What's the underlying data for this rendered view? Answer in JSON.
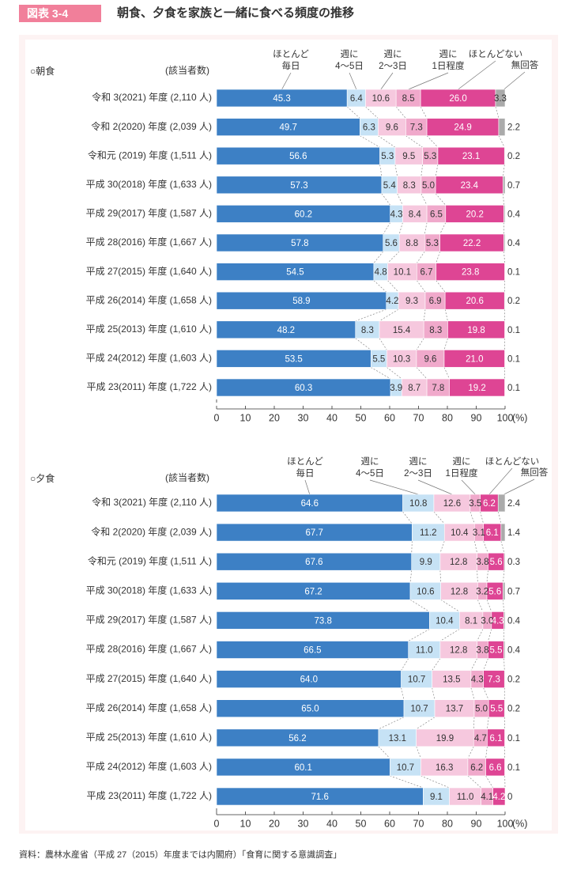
{
  "header": {
    "figure_label": "図表 3-4",
    "title": "朝食、夕食を家族と一緒に食べる頻度の推移"
  },
  "source": "資料：農林水産省（平成 27（2015）年度までは内閣府）「食育に関する意識調査」",
  "colors": {
    "daily": "#3d80c5",
    "w45": "#c6e2f5",
    "w23": "#f6c8de",
    "w1": "#f0a9cb",
    "rare": "#de4594",
    "na": "#aaaaaa"
  },
  "chart_data": [
    {
      "type": "bar",
      "stacked": "horizontal-100",
      "title": "○朝食",
      "respondents_header": "(該当者数)",
      "xlabel": "(%)",
      "xlim": [
        0,
        100
      ],
      "xticks": [
        "0",
        "10",
        "20",
        "30",
        "40",
        "50",
        "60",
        "70",
        "80",
        "90",
        "100"
      ],
      "legend": [
        "ほとんど\n毎日",
        "週に\n4〜5日",
        "週に\n2〜3日",
        "週に\n1日程度",
        "ほとんどない",
        "無回答"
      ],
      "categories": [
        "令和 3(2021) 年度 (2,110 人)",
        "令和 2(2020) 年度 (2,039 人)",
        "令和元 (2019) 年度 (1,511 人)",
        "平成 30(2018) 年度 (1,633 人)",
        "平成 29(2017) 年度 (1,587 人)",
        "平成 28(2016) 年度 (1,667 人)",
        "平成 27(2015) 年度 (1,640 人)",
        "平成 26(2014) 年度 (1,658 人)",
        "平成 25(2013) 年度 (1,610 人)",
        "平成 24(2012) 年度 (1,603 人)",
        "平成 23(2011) 年度 (1,722 人)"
      ],
      "series": [
        {
          "name": "ほとんど毎日",
          "values": [
            45.3,
            49.7,
            56.6,
            57.3,
            60.2,
            57.8,
            54.5,
            58.9,
            48.2,
            53.5,
            60.3
          ]
        },
        {
          "name": "週に4〜5日",
          "values": [
            6.4,
            6.3,
            5.3,
            5.4,
            4.3,
            5.6,
            4.8,
            4.2,
            8.3,
            5.5,
            3.9
          ]
        },
        {
          "name": "週に2〜3日",
          "values": [
            10.6,
            9.6,
            9.5,
            8.3,
            8.4,
            8.8,
            10.1,
            9.3,
            15.4,
            10.3,
            8.7
          ]
        },
        {
          "name": "週に1日程度",
          "values": [
            8.5,
            7.3,
            5.3,
            5.0,
            6.5,
            5.3,
            6.7,
            6.9,
            8.3,
            9.6,
            7.8
          ]
        },
        {
          "name": "ほとんどない",
          "values": [
            26.0,
            24.9,
            23.1,
            23.4,
            20.2,
            22.2,
            23.8,
            20.6,
            19.8,
            21.0,
            19.2
          ]
        },
        {
          "name": "無回答",
          "values": [
            3.3,
            2.2,
            0.2,
            0.7,
            0.4,
            0.4,
            0.1,
            0.2,
            0.1,
            0.1,
            0.1
          ]
        }
      ],
      "labels": [
        [
          "45.3",
          "6.4",
          "10.6",
          "8.5",
          "26.0",
          "3.3"
        ],
        [
          "49.7",
          "6.3",
          "9.6",
          "7.3",
          "24.9",
          "2.2"
        ],
        [
          "56.6",
          "5.3",
          "9.5",
          "5.3",
          "23.1",
          "0.2"
        ],
        [
          "57.3",
          "5.4",
          "8.3",
          "5.0",
          "23.4",
          "0.7"
        ],
        [
          "60.2",
          "4.3",
          "8.4",
          "6.5",
          "20.2",
          "0.4"
        ],
        [
          "57.8",
          "5.6",
          "8.8",
          "5.3",
          "22.2",
          "0.4"
        ],
        [
          "54.5",
          "4.8",
          "10.1",
          "6.7",
          "23.8",
          "0.1"
        ],
        [
          "58.9",
          "4.2",
          "9.3",
          "6.9",
          "20.6",
          "0.2"
        ],
        [
          "48.2",
          "8.3",
          "15.4",
          "8.3",
          "19.8",
          "0.1"
        ],
        [
          "53.5",
          "5.5",
          "10.3",
          "9.6",
          "21.0",
          "0.1"
        ],
        [
          "60.3",
          "3.9",
          "8.7",
          "7.8",
          "19.2",
          "0.1"
        ]
      ]
    },
    {
      "type": "bar",
      "stacked": "horizontal-100",
      "title": "○夕食",
      "respondents_header": "(該当者数)",
      "xlabel": "(%)",
      "xlim": [
        0,
        100
      ],
      "xticks": [
        "0",
        "10",
        "20",
        "30",
        "40",
        "50",
        "60",
        "70",
        "80",
        "90",
        "100"
      ],
      "legend": [
        "ほとんど\n毎日",
        "週に\n4〜5日",
        "週に\n2〜3日",
        "週に\n1日程度",
        "ほとんどない",
        "無回答"
      ],
      "categories": [
        "令和 3(2021) 年度 (2,110 人)",
        "令和 2(2020) 年度 (2,039 人)",
        "令和元 (2019) 年度 (1,511 人)",
        "平成 30(2018) 年度 (1,633 人)",
        "平成 29(2017) 年度 (1,587 人)",
        "平成 28(2016) 年度 (1,667 人)",
        "平成 27(2015) 年度 (1,640 人)",
        "平成 26(2014) 年度 (1,658 人)",
        "平成 25(2013) 年度 (1,610 人)",
        "平成 24(2012) 年度 (1,603 人)",
        "平成 23(2011) 年度 (1,722 人)"
      ],
      "series": [
        {
          "name": "ほとんど毎日",
          "values": [
            64.6,
            67.7,
            67.6,
            67.2,
            73.8,
            66.5,
            64.0,
            65.0,
            56.2,
            60.1,
            71.6
          ]
        },
        {
          "name": "週に4〜5日",
          "values": [
            10.8,
            11.2,
            9.9,
            10.6,
            10.4,
            11.0,
            10.7,
            10.7,
            13.1,
            10.7,
            9.1
          ]
        },
        {
          "name": "週に2〜3日",
          "values": [
            12.6,
            10.4,
            12.8,
            12.8,
            8.1,
            12.8,
            13.5,
            13.7,
            19.9,
            16.3,
            11.0
          ]
        },
        {
          "name": "週に1日程度",
          "values": [
            3.5,
            3.1,
            3.8,
            3.2,
            3.0,
            3.8,
            4.3,
            5.0,
            4.7,
            6.2,
            4.1
          ]
        },
        {
          "name": "ほとんどない",
          "values": [
            6.2,
            6.1,
            5.6,
            5.6,
            4.3,
            5.5,
            7.3,
            5.5,
            6.1,
            6.6,
            4.2
          ]
        },
        {
          "name": "無回答",
          "values": [
            2.4,
            1.4,
            0.3,
            0.7,
            0.4,
            0.4,
            0.2,
            0.2,
            0.1,
            0.1,
            0
          ]
        }
      ],
      "labels": [
        [
          "64.6",
          "10.8",
          "12.6",
          "3.5",
          "6.2",
          "2.4"
        ],
        [
          "67.7",
          "11.2",
          "10.4",
          "3.1",
          "6.1",
          "1.4"
        ],
        [
          "67.6",
          "9.9",
          "12.8",
          "3.8",
          "5.6",
          "0.3"
        ],
        [
          "67.2",
          "10.6",
          "12.8",
          "3.2",
          "5.6",
          "0.7"
        ],
        [
          "73.8",
          "10.4",
          "8.1",
          "3.0",
          "4.3",
          "0.4"
        ],
        [
          "66.5",
          "11.0",
          "12.8",
          "3.8",
          "5.5",
          "0.4"
        ],
        [
          "64.0",
          "10.7",
          "13.5",
          "4.3",
          "7.3",
          "0.2"
        ],
        [
          "65.0",
          "10.7",
          "13.7",
          "5.0",
          "5.5",
          "0.2"
        ],
        [
          "56.2",
          "13.1",
          "19.9",
          "4.7",
          "6.1",
          "0.1"
        ],
        [
          "60.1",
          "10.7",
          "16.3",
          "6.2",
          "6.6",
          "0.1"
        ],
        [
          "71.6",
          "9.1",
          "11.0",
          "4.1",
          "4.2",
          "0"
        ]
      ]
    }
  ]
}
